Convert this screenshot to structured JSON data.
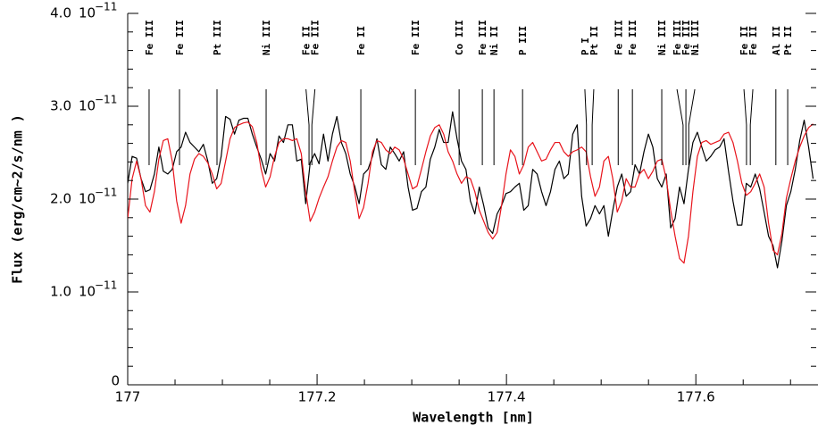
{
  "chart_data": {
    "type": "line",
    "xlabel": "Wavelength [nm]",
    "ylabel": "Flux (erg/cm~2/s/nm )",
    "xlim": [
      177,
      177.729
    ],
    "ylim": [
      0,
      4
    ],
    "xticks": [
      177,
      177.2,
      177.4,
      177.6
    ],
    "xticks_minor": [
      177.05,
      177.1,
      177.15,
      177.25,
      177.3,
      177.35,
      177.45,
      177.5,
      177.55,
      177.65,
      177.7
    ],
    "yticks": [
      0,
      {
        "value": 1,
        "label": "1.0"
      },
      {
        "value": 2,
        "label": "2.0"
      },
      {
        "value": 3,
        "label": "3.0"
      },
      {
        "value": 4,
        "label": "4.0"
      }
    ],
    "yticks_minor": [
      0.2,
      0.4,
      0.6,
      0.8,
      1.2,
      1.4,
      1.6,
      1.8,
      2.2,
      2.4,
      2.6,
      2.8,
      3.2,
      3.4,
      3.6,
      3.8
    ],
    "ytick_multiplier": {
      "base": "10",
      "exponent": "−11"
    },
    "x": [
      177.0,
      177.0047,
      177.0094,
      177.0141,
      177.0188,
      177.0235,
      177.0282,
      177.0329,
      177.0376,
      177.0423,
      177.047,
      177.0517,
      177.0564,
      177.0611,
      177.0658,
      177.0705,
      177.0752,
      177.0799,
      177.0846,
      177.0893,
      177.094,
      177.0987,
      177.1034,
      177.1081,
      177.1128,
      177.1175,
      177.1222,
      177.1269,
      177.1316,
      177.1363,
      177.141,
      177.1457,
      177.1504,
      177.1551,
      177.1598,
      177.1645,
      177.1692,
      177.1739,
      177.1786,
      177.1833,
      177.188,
      177.1927,
      177.1974,
      177.2021,
      177.2068,
      177.2115,
      177.2162,
      177.2209,
      177.2256,
      177.2303,
      177.235,
      177.2397,
      177.2444,
      177.2491,
      177.2538,
      177.2585,
      177.2632,
      177.2679,
      177.2726,
      177.2773,
      177.282,
      177.2867,
      177.2914,
      177.2961,
      177.3008,
      177.3055,
      177.3102,
      177.3149,
      177.3196,
      177.3243,
      177.329,
      177.3337,
      177.3384,
      177.3431,
      177.3478,
      177.3525,
      177.3572,
      177.3619,
      177.3666,
      177.3713,
      177.376,
      177.3807,
      177.3854,
      177.3901,
      177.3948,
      177.3995,
      177.4042,
      177.4089,
      177.4136,
      177.4183,
      177.423,
      177.4277,
      177.4324,
      177.4371,
      177.4418,
      177.4465,
      177.4512,
      177.4559,
      177.4606,
      177.4653,
      177.47,
      177.4747,
      177.4794,
      177.4841,
      177.4888,
      177.4935,
      177.4982,
      177.5029,
      177.5076,
      177.5123,
      177.517,
      177.5217,
      177.5264,
      177.5311,
      177.5358,
      177.5405,
      177.5452,
      177.5499,
      177.5546,
      177.5593,
      177.564,
      177.5687,
      177.5734,
      177.5781,
      177.5828,
      177.5875,
      177.5922,
      177.5969,
      177.6016,
      177.6063,
      177.611,
      177.6157,
      177.6204,
      177.6251,
      177.6298,
      177.6345,
      177.6392,
      177.6439,
      177.6486,
      177.6533,
      177.658,
      177.6627,
      177.6674,
      177.6721,
      177.6768,
      177.6815,
      177.6862,
      177.6909,
      177.6956,
      177.7003,
      177.705,
      177.7097,
      177.7144,
      177.7191,
      177.7238
    ],
    "series": [
      {
        "color": "#000000",
        "values": [
          2.17,
          2.46,
          2.44,
          2.22,
          2.08,
          2.1,
          2.27,
          2.56,
          2.3,
          2.27,
          2.32,
          2.51,
          2.56,
          2.72,
          2.61,
          2.56,
          2.51,
          2.59,
          2.41,
          2.17,
          2.22,
          2.46,
          2.89,
          2.86,
          2.7,
          2.85,
          2.87,
          2.87,
          2.7,
          2.56,
          2.43,
          2.27,
          2.49,
          2.41,
          2.68,
          2.61,
          2.8,
          2.8,
          2.41,
          2.43,
          1.95,
          2.39,
          2.49,
          2.38,
          2.7,
          2.41,
          2.7,
          2.89,
          2.61,
          2.49,
          2.27,
          2.14,
          1.95,
          2.27,
          2.32,
          2.46,
          2.65,
          2.37,
          2.32,
          2.56,
          2.49,
          2.41,
          2.51,
          2.13,
          1.88,
          1.9,
          2.08,
          2.13,
          2.43,
          2.56,
          2.75,
          2.61,
          2.61,
          2.94,
          2.65,
          2.41,
          2.32,
          1.98,
          1.84,
          2.13,
          1.93,
          1.69,
          1.63,
          1.84,
          1.93,
          2.06,
          2.08,
          2.13,
          2.17,
          1.88,
          1.93,
          2.32,
          2.27,
          2.08,
          1.93,
          2.08,
          2.32,
          2.41,
          2.22,
          2.27,
          2.7,
          2.8,
          2.03,
          1.71,
          1.79,
          1.93,
          1.84,
          1.93,
          1.6,
          1.88,
          2.13,
          2.27,
          2.03,
          2.08,
          2.37,
          2.27,
          2.51,
          2.7,
          2.56,
          2.22,
          2.13,
          2.27,
          1.69,
          1.79,
          2.13,
          1.95,
          2.32,
          2.61,
          2.72,
          2.56,
          2.41,
          2.46,
          2.53,
          2.56,
          2.65,
          2.3,
          1.98,
          1.72,
          1.72,
          2.17,
          2.13,
          2.27,
          2.11,
          1.86,
          1.6,
          1.5,
          1.26,
          1.55,
          1.93,
          2.08,
          2.32,
          2.63,
          2.85,
          2.56,
          2.22
        ]
      },
      {
        "color": "#e8141c",
        "values": [
          1.79,
          2.22,
          2.41,
          2.22,
          1.93,
          1.86,
          2.08,
          2.43,
          2.63,
          2.65,
          2.41,
          1.98,
          1.74,
          1.93,
          2.27,
          2.43,
          2.49,
          2.46,
          2.39,
          2.27,
          2.11,
          2.17,
          2.41,
          2.65,
          2.77,
          2.8,
          2.82,
          2.83,
          2.78,
          2.61,
          2.32,
          2.13,
          2.24,
          2.46,
          2.61,
          2.65,
          2.65,
          2.63,
          2.65,
          2.49,
          2.08,
          1.76,
          1.86,
          2.01,
          2.13,
          2.24,
          2.41,
          2.56,
          2.63,
          2.61,
          2.41,
          2.08,
          1.79,
          1.91,
          2.17,
          2.51,
          2.63,
          2.61,
          2.53,
          2.49,
          2.56,
          2.53,
          2.43,
          2.27,
          2.11,
          2.14,
          2.32,
          2.51,
          2.68,
          2.77,
          2.8,
          2.7,
          2.51,
          2.41,
          2.27,
          2.17,
          2.24,
          2.22,
          2.08,
          1.88,
          1.76,
          1.64,
          1.57,
          1.64,
          1.93,
          2.27,
          2.53,
          2.46,
          2.27,
          2.37,
          2.56,
          2.61,
          2.51,
          2.41,
          2.43,
          2.53,
          2.61,
          2.61,
          2.51,
          2.46,
          2.51,
          2.53,
          2.56,
          2.51,
          2.24,
          2.03,
          2.13,
          2.41,
          2.46,
          2.22,
          1.86,
          1.98,
          2.22,
          2.13,
          2.13,
          2.27,
          2.32,
          2.22,
          2.3,
          2.41,
          2.43,
          2.22,
          1.88,
          1.6,
          1.36,
          1.31,
          1.6,
          2.08,
          2.46,
          2.61,
          2.63,
          2.59,
          2.61,
          2.63,
          2.7,
          2.72,
          2.61,
          2.41,
          2.17,
          2.04,
          2.08,
          2.17,
          2.27,
          2.13,
          1.74,
          1.45,
          1.4,
          1.63,
          2.01,
          2.22,
          2.41,
          2.56,
          2.68,
          2.77,
          2.81
        ]
      }
    ],
    "line_ids": [
      {
        "label": "Fe III",
        "wavelength": 177.0226
      },
      {
        "label": "Fe III",
        "wavelength": 177.0547
      },
      {
        "label": "Pt III",
        "wavelength": 177.0943
      },
      {
        "label": "Ni III",
        "wavelength": 177.1462
      },
      {
        "label": "Fe II",
        "wavelength": 177.1915
      },
      {
        "label": "Fe III",
        "wavelength": 177.1945
      },
      {
        "label": "Fe II",
        "wavelength": 177.2462
      },
      {
        "label": "Fe III",
        "wavelength": 177.3038
      },
      {
        "label": "Co III",
        "wavelength": 177.35
      },
      {
        "label": "Fe III",
        "wavelength": 177.3745
      },
      {
        "label": "Ni II",
        "wavelength": 177.3868
      },
      {
        "label": "P III",
        "wavelength": 177.417
      },
      {
        "label": "P I",
        "wavelength": 177.4845
      },
      {
        "label": "Pt II",
        "wavelength": 177.4905
      },
      {
        "label": "Fe III",
        "wavelength": 177.518
      },
      {
        "label": "Fe III",
        "wavelength": 177.533
      },
      {
        "label": "Ni III",
        "wavelength": 177.564
      },
      {
        "label": "Fe III",
        "wavelength": 177.5865
      },
      {
        "label": "Fe III",
        "wavelength": 177.5895
      },
      {
        "label": "Ni III",
        "wavelength": 177.5925
      },
      {
        "label": "Fe II",
        "wavelength": 177.6535
      },
      {
        "label": "Fe II",
        "wavelength": 177.6575
      },
      {
        "label": "Al II",
        "wavelength": 177.6845
      },
      {
        "label": "Pt II",
        "wavelength": 177.697
      }
    ]
  }
}
